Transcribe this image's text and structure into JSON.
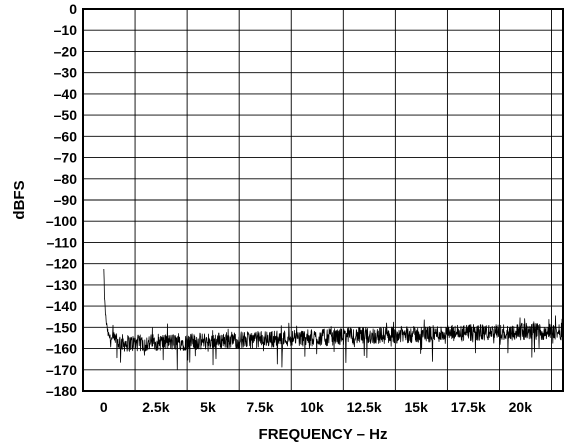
{
  "chart_data": {
    "type": "line",
    "title": "",
    "xlabel": "FREQUENCY – Hz",
    "ylabel": "dBFS",
    "xlim": [
      -1000,
      22050
    ],
    "ylim": [
      -180,
      0
    ],
    "x_ticks": [
      0,
      2500,
      5000,
      7500,
      10000,
      12500,
      15000,
      17500,
      20000
    ],
    "x_tick_labels": [
      "0",
      "2.5k",
      "5k",
      "7.5k",
      "10k",
      "12.5k",
      "15k",
      "17.5k",
      "20k"
    ],
    "y_ticks": [
      0,
      -10,
      -20,
      -30,
      -40,
      -50,
      -60,
      -70,
      -80,
      -90,
      -100,
      -110,
      -120,
      -130,
      -140,
      -150,
      -160,
      -170,
      -180
    ],
    "y_tick_labels": [
      "0",
      "–10",
      "–20",
      "–30",
      "–40",
      "–50",
      "–60",
      "–70",
      "–80",
      "–90",
      "–100",
      "–110",
      "–120",
      "–130",
      "–140",
      "–150",
      "–160",
      "–170",
      "–180"
    ],
    "x_grid_lines": [
      1500,
      4000,
      6500,
      9000,
      11500,
      14000,
      16500,
      19000,
      21500
    ],
    "grid": true,
    "legend": false,
    "series": [
      {
        "x": [
          0,
          30,
          60,
          100,
          150,
          200,
          300,
          400,
          600,
          800,
          1000,
          1500,
          2000,
          2500,
          3000,
          4000,
          5000,
          6000,
          7000,
          8000,
          9000,
          10000,
          11000,
          12000,
          13000,
          14000,
          15000,
          16000,
          17000,
          18000,
          19000,
          20000,
          21000,
          22050
        ],
        "values": [
          -123,
          -135,
          -141,
          -146,
          -150,
          -153,
          -155,
          -156,
          -157,
          -157,
          -157.5,
          -157.5,
          -157.5,
          -157,
          -157,
          -157,
          -156.5,
          -156,
          -156,
          -155.5,
          -155,
          -155,
          -154.5,
          -154,
          -154,
          -153.5,
          -153.5,
          -153,
          -153,
          -152.5,
          -152.5,
          -152,
          -152,
          -152
        ]
      }
    ]
  }
}
